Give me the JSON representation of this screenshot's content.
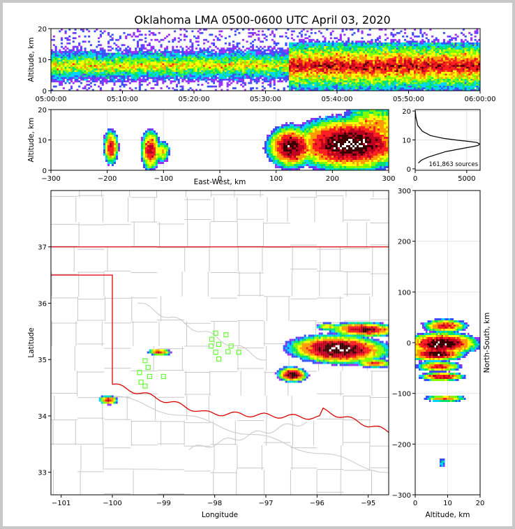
{
  "title": "Oklahoma LMA 0500-0600 UTC April 03, 2020",
  "colors": {
    "density": [
      "#9b30ff",
      "#3a50ff",
      "#00d4ff",
      "#00e070",
      "#80ff00",
      "#ffff00",
      "#ff9a00",
      "#ff2020",
      "#c00020",
      "#3a0000",
      "#ffffff"
    ],
    "state_border": "#dd0000",
    "county": "#c8c8c8",
    "station": "#66ff33",
    "grid": "#e4e4e4"
  },
  "chart_data": [
    {
      "id": "time_altitude",
      "type": "heatmap",
      "ylabel": "Altitude, km",
      "ylim": [
        0,
        20
      ],
      "yticks": [
        "0",
        "10",
        "20"
      ],
      "xticks": [
        "05:00:00",
        "05:10:00",
        "05:20:00",
        "05:30:00",
        "05:40:00",
        "05:50:00",
        "06:00:00"
      ],
      "xlim_minutes": [
        0,
        60
      ]
    },
    {
      "id": "eastwest_altitude",
      "type": "heatmap",
      "xlabel": "East-West, km",
      "ylabel": "Altitude, km",
      "xlim": [
        -300,
        300
      ],
      "ylim": [
        0,
        20
      ],
      "xticks": [
        -300,
        -200,
        -100,
        0,
        100,
        200,
        300
      ],
      "yticks": [
        0,
        10,
        20
      ]
    },
    {
      "id": "altitude_histogram",
      "type": "line",
      "annotation": "161,863 sources",
      "xlim": [
        0,
        6300
      ],
      "ylim": [
        -0.5,
        20.5
      ],
      "xticks": [
        0,
        5000
      ],
      "yticks": [
        0,
        10,
        20
      ],
      "x": [
        300,
        600,
        1200,
        2100,
        3000,
        3900,
        4800,
        5600,
        6100,
        6250,
        6000,
        5200,
        4100,
        2800,
        1500,
        700,
        250,
        60,
        10
      ],
      "y": [
        2,
        3,
        4,
        5,
        6,
        6.6,
        7.2,
        7.7,
        8.1,
        8.6,
        9.1,
        9.5,
        9.9,
        10.5,
        11.5,
        13,
        15,
        18,
        20
      ]
    },
    {
      "id": "plan_view",
      "type": "scatter",
      "xlabel": "Longitude",
      "ylabel": "Latitude",
      "xlim": [
        -101.2,
        -94.6
      ],
      "ylim": [
        32.6,
        38.0
      ],
      "xticks": [
        -101,
        -100,
        -99,
        -98,
        -97,
        -96,
        -95
      ],
      "yticks": [
        33,
        34,
        35,
        36,
        37
      ],
      "stations": [
        {
          "lon": -97.98,
          "lat": 35.47
        },
        {
          "lon": -97.78,
          "lat": 35.44
        },
        {
          "lon": -98.06,
          "lat": 35.36
        },
        {
          "lon": -97.92,
          "lat": 35.27
        },
        {
          "lon": -97.68,
          "lat": 35.24
        },
        {
          "lon": -98.07,
          "lat": 35.24
        },
        {
          "lon": -97.98,
          "lat": 35.13
        },
        {
          "lon": -97.74,
          "lat": 35.14
        },
        {
          "lon": -97.53,
          "lat": 35.13
        },
        {
          "lon": -97.92,
          "lat": 35.01
        },
        {
          "lon": -99.36,
          "lat": 34.98
        },
        {
          "lon": -99.3,
          "lat": 34.86
        },
        {
          "lon": -99.47,
          "lat": 34.77
        },
        {
          "lon": -99.27,
          "lat": 34.7
        },
        {
          "lon": -99.0,
          "lat": 34.7
        },
        {
          "lon": -99.44,
          "lat": 34.6
        },
        {
          "lon": -99.36,
          "lat": 34.53
        }
      ]
    },
    {
      "id": "altitude_northsouth",
      "type": "heatmap",
      "xlabel": "Altitude, km",
      "ylabel": "North-South, km",
      "xlim": [
        0,
        20
      ],
      "ylim": [
        -300,
        300
      ],
      "xticks": [
        0,
        10,
        20
      ],
      "yticks": [
        -300,
        -200,
        -100,
        0,
        100,
        200,
        300
      ]
    }
  ]
}
